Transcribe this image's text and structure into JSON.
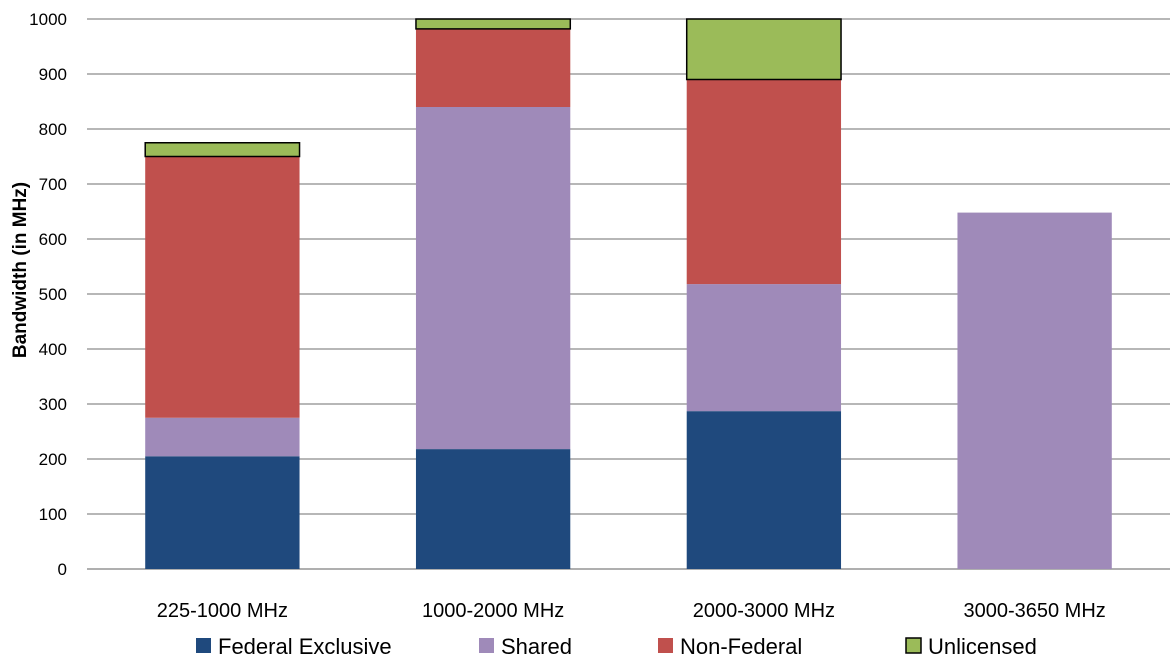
{
  "chart_data": {
    "type": "bar",
    "stacked": true,
    "title": "",
    "xlabel": "",
    "ylabel": "Bandwidth (in MHz)",
    "ylim": [
      0,
      1000
    ],
    "yticks": [
      0,
      100,
      200,
      300,
      400,
      500,
      600,
      700,
      800,
      900,
      1000
    ],
    "grid": true,
    "legend_position": "bottom",
    "categories": [
      "225-1000 MHz",
      "1000-2000 MHz",
      "2000-3000 MHz",
      "3000-3650 MHz"
    ],
    "series": [
      {
        "name": "Federal Exclusive",
        "color": "#1F497D",
        "values": [
          205,
          218,
          287,
          0
        ]
      },
      {
        "name": "Shared",
        "color": "#9F8AB9",
        "values": [
          70,
          622,
          231,
          648
        ]
      },
      {
        "name": "Non-Federal",
        "color": "#C0504D",
        "values": [
          475,
          142,
          372,
          0
        ]
      },
      {
        "name": "Unlicensed",
        "color": "#9BBB59",
        "values": [
          25,
          18,
          110,
          0
        ]
      }
    ]
  }
}
